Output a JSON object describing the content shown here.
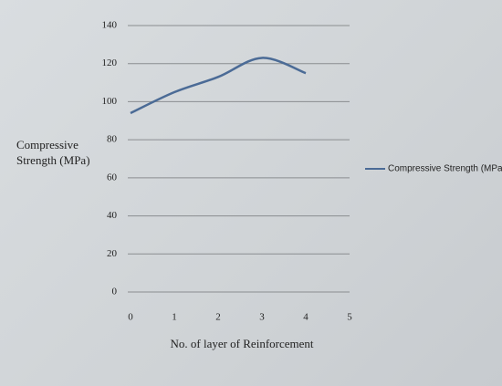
{
  "chart_data": {
    "type": "line",
    "x": [
      0,
      1,
      2,
      3,
      4
    ],
    "series": [
      {
        "name": "Compressive Strength (MPa)",
        "color": "#4b6b96",
        "values": [
          94,
          105,
          113,
          123,
          115
        ]
      }
    ],
    "xlim": [
      0,
      5
    ],
    "xticks": [
      0,
      1,
      2,
      3,
      4,
      5
    ],
    "ylim": [
      0,
      140
    ],
    "yticks": [
      0,
      20,
      40,
      60,
      80,
      100,
      120,
      140
    ],
    "xlabel": "No. of layer of Reinforcement",
    "ylabel": "Compressive Strength (MPa)",
    "grid": true,
    "legend": "right"
  }
}
